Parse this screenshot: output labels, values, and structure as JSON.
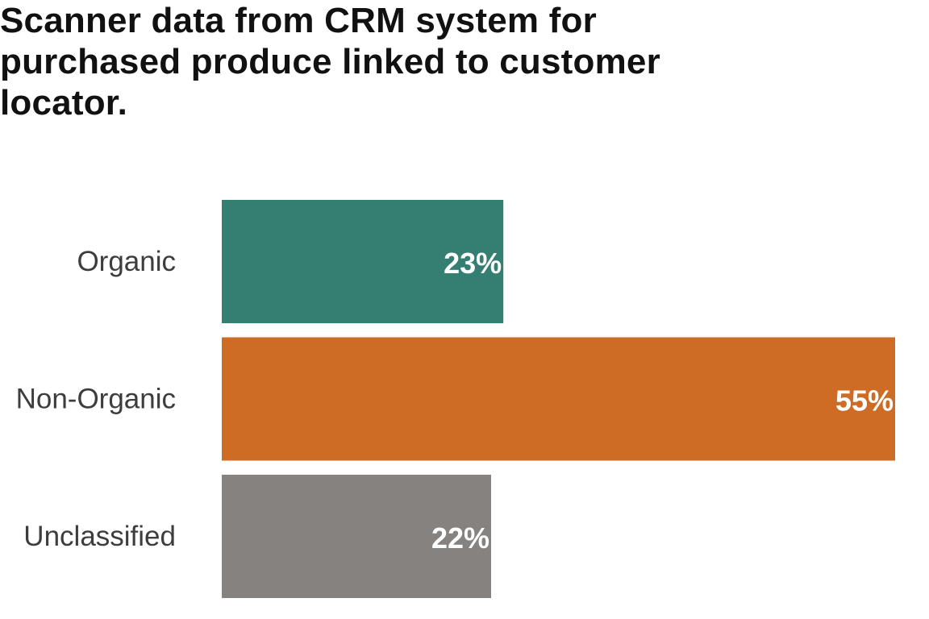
{
  "chart_data": {
    "type": "bar",
    "orientation": "horizontal",
    "title": "Scanner data from CRM system for purchased produce linked to customer locator.",
    "categories": [
      "Organic",
      "Non-Organic",
      "Unclassified"
    ],
    "values": [
      23,
      55,
      22
    ],
    "value_labels": [
      "23%",
      "55%",
      "22%"
    ],
    "colors": [
      "#357e72",
      "#ce6b24",
      "#858280"
    ],
    "xlim": [
      0,
      55
    ],
    "xlabel": "",
    "ylabel": "",
    "grid": false,
    "legend": "none"
  }
}
